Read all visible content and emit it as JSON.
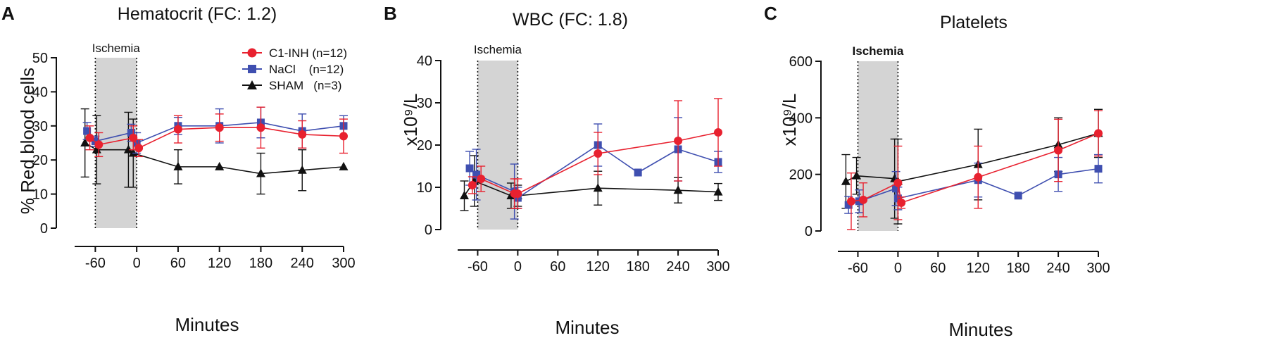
{
  "figure": {
    "legend": [
      {
        "series": "C1-INH",
        "label": "C1-INH (n=12)"
      },
      {
        "series": "NaCl",
        "label": "NaCl    (n=12)"
      },
      {
        "series": "SHAM",
        "label": "SHAM   (n=3)"
      }
    ],
    "series_styles": {
      "C1-INH": {
        "color": "#e8212f",
        "marker": "circle"
      },
      "NaCl": {
        "color": "#3f4fb0",
        "marker": "square"
      },
      "SHAM": {
        "color": "#111111",
        "marker": "triangle"
      }
    }
  },
  "chart_data": [
    {
      "type": "line",
      "panel": "A",
      "title": "Hematocrit (FC: 1.2)",
      "xlabel": "Minutes",
      "ylabel": "% Red blood cells",
      "xlim": [
        -90,
        300
      ],
      "ylim": [
        0,
        50
      ],
      "xticks": [
        -60,
        0,
        60,
        120,
        180,
        240,
        300
      ],
      "xtick_labels": [
        "-60",
        "0",
        "60",
        "120",
        "180",
        "240",
        "300"
      ],
      "yticks": [
        0,
        10,
        20,
        30,
        40,
        50
      ],
      "ytick_labels": [
        "0",
        "10",
        "20",
        "30",
        "40",
        "50"
      ],
      "ischemia": {
        "start": -60,
        "end": 0,
        "label": "Ischemia"
      },
      "series": [
        {
          "name": "C1-INH",
          "x": [
            -68,
            -55,
            -5,
            3,
            60,
            120,
            180,
            240,
            300
          ],
          "y": [
            26.5,
            24.5,
            26.5,
            23.5,
            29,
            29.5,
            29.5,
            27.5,
            27
          ],
          "err": [
            3.5,
            3.5,
            3.5,
            2.5,
            4,
            4,
            6,
            4,
            5
          ]
        },
        {
          "name": "NaCl",
          "x": [
            -72,
            -60,
            -8,
            0,
            60,
            120,
            180,
            240,
            300
          ],
          "y": [
            28.5,
            25.5,
            28,
            25,
            30,
            30,
            31,
            28.5,
            30
          ],
          "err": [
            2.5,
            1.5,
            2.5,
            3,
            2.5,
            5,
            4.5,
            5,
            3
          ]
        },
        {
          "name": "SHAM",
          "x": [
            -75,
            -58,
            -12,
            -5,
            60,
            120,
            180,
            240,
            300
          ],
          "y": [
            25,
            23,
            23,
            22,
            18,
            18,
            16,
            17,
            18
          ],
          "err": [
            10,
            10,
            11,
            10,
            5,
            0,
            6,
            6,
            0
          ]
        }
      ]
    },
    {
      "type": "line",
      "panel": "B",
      "title": "WBC (FC: 1.8)",
      "xlabel": "Minutes",
      "ylabel": "x10⁹/L",
      "xlim": [
        -90,
        300
      ],
      "ylim": [
        0,
        40
      ],
      "xticks": [
        -60,
        0,
        60,
        120,
        180,
        240,
        300
      ],
      "xtick_labels": [
        "-60",
        "0",
        "60",
        "120",
        "180",
        "240",
        "300"
      ],
      "yticks": [
        0,
        10,
        20,
        30,
        40
      ],
      "ytick_labels": [
        "0",
        "10",
        "20",
        "30",
        "40"
      ],
      "ischemia": {
        "start": -60,
        "end": 0,
        "label": "Ischemia"
      },
      "series": [
        {
          "name": "C1-INH",
          "x": [
            -68,
            -55,
            -5,
            0,
            120,
            240,
            300
          ],
          "y": [
            10.5,
            12,
            8.5,
            8.5,
            18,
            21,
            23
          ],
          "err": [
            2,
            3,
            3.5,
            3.5,
            5,
            9.5,
            8
          ]
        },
        {
          "name": "NaCl",
          "x": [
            -72,
            -62,
            -5,
            0,
            120,
            180,
            240,
            300
          ],
          "y": [
            14.5,
            13,
            9,
            7.5,
            20,
            13.5,
            19,
            16
          ],
          "err": [
            4,
            6,
            6.5,
            2.5,
            5,
            0,
            7.5,
            2.5
          ]
        },
        {
          "name": "SHAM",
          "x": [
            -80,
            -65,
            -10,
            0,
            120,
            240,
            300
          ],
          "y": [
            8,
            11.5,
            8,
            8,
            9.8,
            9.3,
            8.9
          ],
          "err": [
            3.5,
            6,
            3,
            2.5,
            4,
            3,
            2
          ]
        }
      ]
    },
    {
      "type": "line",
      "panel": "C",
      "title": "Platelets",
      "xlabel": "Minutes",
      "ylabel": "x10⁹/L",
      "xlim": [
        -90,
        300
      ],
      "ylim": [
        0,
        600
      ],
      "xticks": [
        -60,
        0,
        60,
        120,
        180,
        240,
        300
      ],
      "xtick_labels": [
        "-60",
        "0",
        "60",
        "120",
        "180",
        "240",
        "300"
      ],
      "yticks": [
        0,
        200,
        400,
        600
      ],
      "ytick_labels": [
        "0",
        "200",
        "400",
        "600"
      ],
      "ischemia": {
        "start": -60,
        "end": 0,
        "label": "Ischemia"
      },
      "series": [
        {
          "name": "C1-INH",
          "x": [
            -70,
            -52,
            0,
            5,
            120,
            240,
            300
          ],
          "y": [
            105,
            110,
            170,
            100,
            190,
            285,
            345
          ],
          "err": [
            100,
            60,
            130,
            20,
            110,
            110,
            80
          ]
        },
        {
          "name": "NaCl",
          "x": [
            -74,
            -58,
            -3,
            0,
            120,
            180,
            240,
            300
          ],
          "y": [
            92,
            105,
            150,
            115,
            180,
            125,
            200,
            220
          ],
          "err": [
            30,
            40,
            60,
            40,
            60,
            0,
            60,
            50
          ]
        },
        {
          "name": "SHAM",
          "x": [
            -78,
            -62,
            -5,
            0,
            120,
            240,
            300
          ],
          "y": [
            175,
            195,
            185,
            175,
            235,
            305,
            345
          ],
          "err": [
            95,
            65,
            140,
            150,
            125,
            95,
            85
          ]
        }
      ]
    }
  ]
}
